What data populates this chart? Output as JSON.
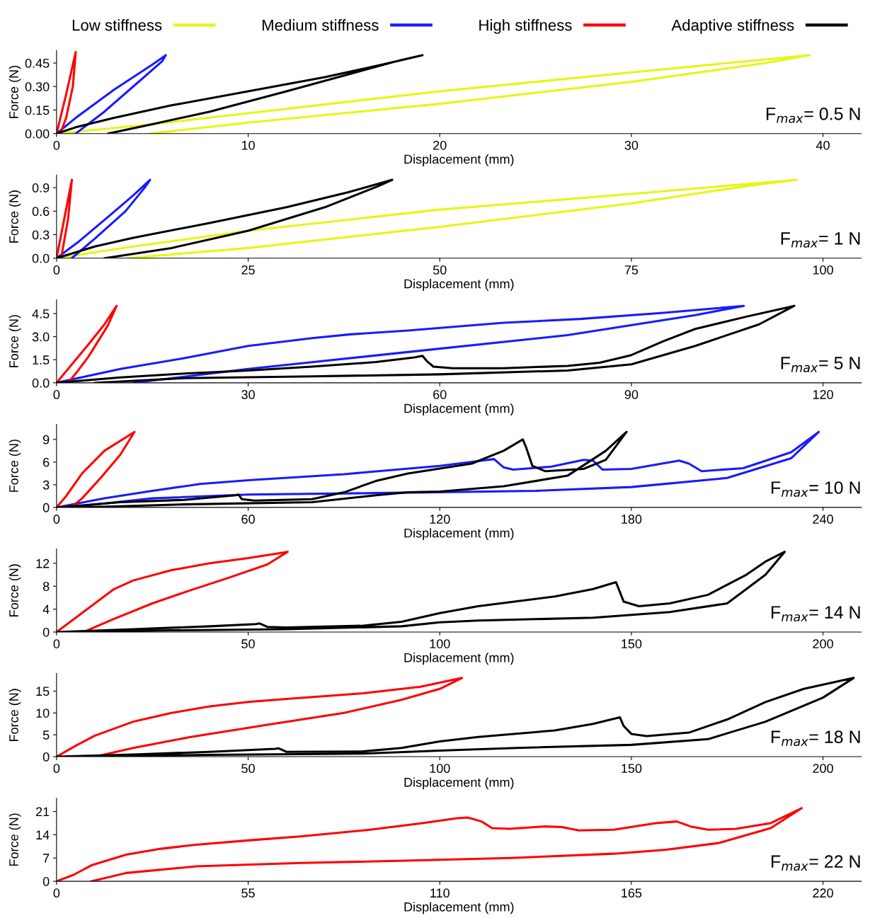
{
  "chart_data": [
    {
      "type": "line",
      "legend": "top",
      "xlabel": "Displacement (mm)",
      "ylabel": "Force (N)",
      "annotations": [
        "F$_{max}$= 0.5 N"
      ],
      "xlim": [
        0,
        42
      ],
      "ylim": [
        0,
        0.53
      ],
      "xticks": [
        0,
        10,
        20,
        30,
        40
      ],
      "yticks": [
        {
          "value": 0,
          "label": "0.00"
        },
        {
          "value": 0.15,
          "label": "0.15"
        },
        {
          "value": 0.3,
          "label": "0.30"
        },
        {
          "value": 0.45,
          "label": "0.45"
        }
      ],
      "series": [
        {
          "name": "Low stiffness",
          "color": "#e6f516",
          "x": [
            0,
            5,
            10,
            20,
            30,
            39.3,
            37,
            30,
            20,
            10,
            4.9
          ],
          "values": [
            0,
            0.06,
            0.13,
            0.27,
            0.39,
            0.5,
            0.45,
            0.33,
            0.19,
            0.07,
            0
          ]
        },
        {
          "name": "Medium stiffness",
          "color": "#1a1aff",
          "x": [
            0,
            1,
            3,
            5,
            5.7,
            5.5,
            4,
            2.5,
            1.0
          ],
          "values": [
            0,
            0.1,
            0.28,
            0.44,
            0.5,
            0.46,
            0.3,
            0.14,
            0
          ]
        },
        {
          "name": "High stiffness",
          "color": "#ff0000",
          "x": [
            0,
            0.5,
            1.0,
            0.85,
            0.5,
            0.2
          ],
          "values": [
            0,
            0.25,
            0.52,
            0.3,
            0.1,
            0
          ]
        },
        {
          "name": "Adaptive stiffness",
          "color": "#000000",
          "x": [
            0,
            1,
            3,
            6,
            10,
            14,
            17,
            19.1,
            18,
            15,
            12,
            8,
            5,
            2.7
          ],
          "values": [
            0,
            0.04,
            0.1,
            0.18,
            0.27,
            0.36,
            0.44,
            0.5,
            0.47,
            0.37,
            0.27,
            0.14,
            0.06,
            0
          ]
        }
      ]
    },
    {
      "type": "line",
      "xlabel": "Displacement (mm)",
      "ylabel": "Force (N)",
      "annotations": [
        "F$_{max}$= 1 N"
      ],
      "xlim": [
        0,
        105
      ],
      "ylim": [
        0,
        1.06
      ],
      "xticks": [
        0,
        25,
        50,
        75,
        100
      ],
      "yticks": [
        {
          "value": 0,
          "label": "0.0"
        },
        0.3,
        0.6,
        0.9
      ],
      "series": [
        {
          "color": "#e6f516",
          "x": [
            0,
            10,
            25,
            50,
            75,
            96.6,
            90,
            75,
            50,
            25,
            9.3
          ],
          "values": [
            0,
            0.15,
            0.35,
            0.62,
            0.82,
            1.0,
            0.92,
            0.7,
            0.4,
            0.13,
            0
          ]
        },
        {
          "color": "#1a1aff",
          "x": [
            0,
            3,
            7,
            10,
            12.2,
            11.5,
            9,
            5,
            2
          ],
          "values": [
            0,
            0.22,
            0.55,
            0.8,
            1.0,
            0.9,
            0.6,
            0.25,
            0
          ]
        },
        {
          "color": "#ff0000",
          "x": [
            0,
            1,
            2.0,
            1.5,
            0.6
          ],
          "values": [
            0,
            0.5,
            1.0,
            0.5,
            0
          ]
        },
        {
          "color": "#000000",
          "x": [
            0,
            5,
            10,
            20,
            30,
            38,
            43.8,
            42,
            35,
            25,
            15,
            6.3
          ],
          "values": [
            0,
            0.15,
            0.26,
            0.45,
            0.65,
            0.84,
            1.0,
            0.92,
            0.65,
            0.35,
            0.13,
            0
          ]
        }
      ]
    },
    {
      "type": "line",
      "xlabel": "Displacement (mm)",
      "ylabel": "Force (N)",
      "annotations": [
        "F$_{max}$= 5 N"
      ],
      "xlim": [
        0,
        126
      ],
      "ylim": [
        0,
        5.4
      ],
      "xticks": [
        0,
        30,
        60,
        90,
        120
      ],
      "yticks": [
        {
          "value": 0,
          "label": "0.0"
        },
        1.5,
        {
          "value": 3,
          "label": "3.0"
        },
        4.5
      ],
      "series": [
        {
          "color": "#1a1aff",
          "x": [
            0,
            10,
            20,
            30,
            40,
            46,
            55,
            70,
            82,
            95,
            107.6,
            100,
            80,
            55,
            30,
            12
          ],
          "values": [
            0,
            0.9,
            1.6,
            2.4,
            2.9,
            3.15,
            3.4,
            3.9,
            4.15,
            4.55,
            5.0,
            4.4,
            3.1,
            2.0,
            0.9,
            0
          ]
        },
        {
          "color": "#ff0000",
          "x": [
            0,
            2,
            5,
            7.5,
            9.4,
            8,
            5,
            3,
            1.8
          ],
          "values": [
            0,
            1.0,
            2.5,
            3.8,
            5.0,
            3.7,
            1.7,
            0.6,
            0
          ]
        },
        {
          "color": "#000000",
          "x": [
            0,
            10,
            20,
            30,
            40,
            50,
            56,
            57.3,
            58,
            59,
            62,
            70,
            80,
            85,
            90,
            95,
            100,
            108,
            115.5,
            110,
            100,
            90,
            80,
            60,
            40,
            20,
            6
          ],
          "values": [
            0,
            0.35,
            0.6,
            0.8,
            1.05,
            1.35,
            1.65,
            1.75,
            1.4,
            1.05,
            0.95,
            0.95,
            1.1,
            1.3,
            1.8,
            2.7,
            3.5,
            4.3,
            5.0,
            3.8,
            2.4,
            1.2,
            0.8,
            0.55,
            0.42,
            0.3,
            0
          ]
        }
      ]
    },
    {
      "type": "line",
      "xlabel": "Displacement (mm)",
      "ylabel": "Force (N)",
      "annotations": [
        "F$_{max}$= 10 N"
      ],
      "xlim": [
        0,
        252
      ],
      "ylim": [
        0,
        11
      ],
      "xticks": [
        0,
        60,
        120,
        180,
        240
      ],
      "yticks": [
        0,
        3,
        6,
        9
      ],
      "series": [
        {
          "color": "#1a1aff",
          "x": [
            0,
            15,
            30,
            45,
            60,
            90,
            120,
            135,
            137,
            140,
            143,
            155,
            165,
            168,
            171,
            180,
            195,
            198,
            202,
            215,
            230,
            238.7,
            230,
            210,
            180,
            150,
            100,
            60,
            30,
            10,
            5
          ],
          "values": [
            0,
            1.2,
            2.2,
            3.1,
            3.6,
            4.4,
            5.5,
            6.3,
            6.4,
            5.3,
            5.0,
            5.4,
            6.3,
            6.2,
            5.0,
            5.1,
            6.2,
            5.8,
            4.8,
            5.2,
            7.3,
            10,
            6.5,
            3.9,
            2.7,
            2.2,
            1.9,
            1.7,
            1.2,
            0.3,
            0
          ]
        },
        {
          "color": "#ff0000",
          "x": [
            0,
            3,
            8,
            15,
            24.4,
            20,
            14,
            8,
            4.5
          ],
          "values": [
            0,
            1.5,
            4.5,
            7.5,
            10,
            7,
            4,
            1.2,
            0
          ]
        },
        {
          "color": "#000000",
          "x": [
            0,
            20,
            40,
            56,
            57,
            58,
            62,
            80,
            90,
            100,
            110,
            130,
            140,
            146,
            147,
            149,
            153,
            165,
            172,
            178.5,
            172,
            160,
            140,
            120,
            110,
            100,
            80,
            40,
            7
          ],
          "values": [
            0,
            0.7,
            1.0,
            1.6,
            1.7,
            1.1,
            0.9,
            1.1,
            2.0,
            3.5,
            4.5,
            5.8,
            7.5,
            9.0,
            8.0,
            5.5,
            4.8,
            5.1,
            6.3,
            10,
            7.5,
            4.2,
            2.8,
            2.1,
            2.0,
            1.6,
            0.7,
            0.4,
            0
          ]
        }
      ]
    },
    {
      "type": "line",
      "xlabel": "Displacement (mm)",
      "ylabel": "Force (N)",
      "annotations": [
        "F$_{max}$= 14 N"
      ],
      "xlim": [
        0,
        210
      ],
      "ylim": [
        0,
        14.5
      ],
      "xticks": [
        0,
        50,
        100,
        150,
        200
      ],
      "yticks": [
        0,
        4,
        8,
        12
      ],
      "series": [
        {
          "color": "#ff0000",
          "x": [
            0,
            5,
            10,
            15,
            20,
            30,
            40,
            50,
            60.3,
            55,
            45,
            35,
            25,
            15,
            7
          ],
          "values": [
            0,
            2.5,
            5.0,
            7.5,
            9.0,
            10.8,
            12.0,
            12.9,
            14,
            11.8,
            9.5,
            7.3,
            5.0,
            2.3,
            0
          ]
        },
        {
          "color": "#000000",
          "x": [
            0,
            20,
            40,
            52,
            53,
            55,
            60,
            80,
            90,
            100,
            110,
            130,
            140,
            146,
            147,
            148,
            152,
            160,
            170,
            180,
            185,
            190,
            185,
            175,
            160,
            140,
            110,
            100,
            90,
            60,
            30,
            7
          ],
          "values": [
            0,
            0.5,
            1.0,
            1.4,
            1.5,
            0.9,
            0.8,
            1.1,
            1.8,
            3.3,
            4.5,
            6.2,
            7.5,
            8.7,
            7.0,
            5.3,
            4.5,
            5.0,
            6.5,
            10.0,
            12.3,
            14,
            10,
            5.0,
            3.5,
            2.5,
            2.0,
            1.7,
            1.0,
            0.5,
            0.3,
            0
          ]
        }
      ]
    },
    {
      "type": "line",
      "xlabel": "Displacement (mm)",
      "ylabel": "Force (N)",
      "annotations": [
        "F$_{max}$= 18 N"
      ],
      "xlim": [
        0,
        210
      ],
      "ylim": [
        0,
        19
      ],
      "xticks": [
        0,
        50,
        100,
        150,
        200
      ],
      "yticks": [
        0,
        5,
        10,
        15
      ],
      "series": [
        {
          "color": "#ff0000",
          "x": [
            0,
            5,
            10,
            20,
            30,
            40,
            50,
            60,
            80,
            95,
            105.8,
            100,
            90,
            75,
            55,
            35,
            20,
            10
          ],
          "values": [
            0,
            2.5,
            4.8,
            8.0,
            10.0,
            11.5,
            12.5,
            13.2,
            14.5,
            16.0,
            18,
            15.5,
            13,
            10,
            7.3,
            4.5,
            2.0,
            0
          ]
        },
        {
          "color": "#000000",
          "x": [
            0,
            20,
            40,
            57,
            58,
            60,
            80,
            90,
            100,
            110,
            130,
            140,
            147,
            148,
            150,
            154,
            165,
            175,
            185,
            195,
            208,
            200,
            185,
            170,
            150,
            120,
            100,
            80,
            40,
            6
          ],
          "values": [
            0,
            0.5,
            1.1,
            1.8,
            1.9,
            1.1,
            1.2,
            2.0,
            3.5,
            4.5,
            6.0,
            7.5,
            9.0,
            7.0,
            5.2,
            4.7,
            5.5,
            8.5,
            12.5,
            15.5,
            18,
            13.5,
            8,
            4.0,
            2.7,
            2.0,
            1.4,
            0.7,
            0.4,
            0
          ]
        }
      ]
    },
    {
      "type": "line",
      "xlabel": "Displacement (mm)",
      "ylabel": "Force (N)",
      "annotations": [
        "F$_{max}$= 22 N"
      ],
      "xlim": [
        0,
        231
      ],
      "ylim": [
        0,
        25
      ],
      "xticks": [
        0,
        55,
        110,
        165,
        220
      ],
      "yticks": [
        0,
        7,
        14,
        21
      ],
      "series": [
        {
          "color": "#ff0000",
          "x": [
            0,
            5,
            10,
            20,
            30,
            40,
            55,
            70,
            90,
            105,
            115,
            118,
            122,
            125,
            130,
            140,
            145,
            150,
            160,
            172,
            178,
            182,
            187,
            195,
            205,
            213.9,
            205,
            190,
            175,
            160,
            130,
            100,
            70,
            40,
            20,
            10
          ],
          "values": [
            0,
            2.0,
            4.8,
            8.0,
            9.8,
            11.0,
            12.3,
            13.5,
            15.5,
            17.5,
            19.0,
            19.2,
            18.0,
            16.0,
            15.8,
            16.5,
            16.3,
            15.3,
            15.5,
            17.5,
            18.0,
            16.5,
            15.5,
            15.8,
            17.5,
            22,
            16,
            11.5,
            9.5,
            8.3,
            7.0,
            6.2,
            5.5,
            4.5,
            2.5,
            0
          ]
        }
      ]
    }
  ]
}
